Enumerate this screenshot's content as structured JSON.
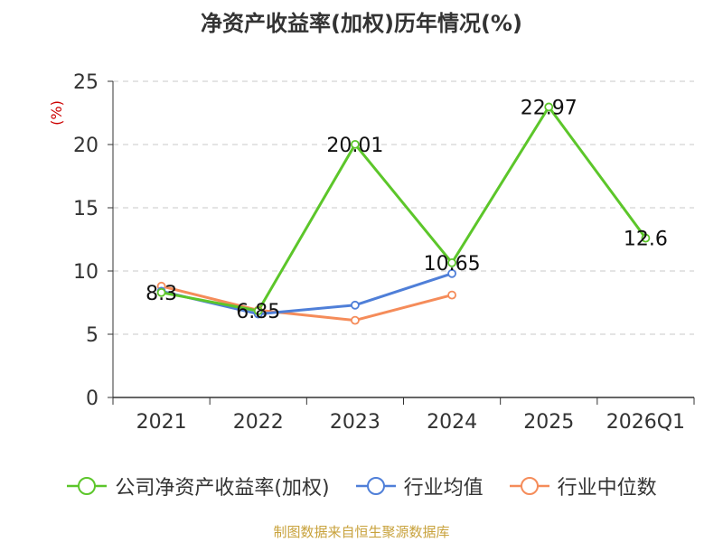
{
  "title": "净资产收益率(加权)历年情况(%)",
  "source_note": "制图数据来自恒生聚源数据库",
  "chart_data": {
    "type": "line",
    "title": "净资产收益率(加权)历年情况(%)",
    "ylabel": "(%)",
    "categories": [
      "2021",
      "2022",
      "2023",
      "2024",
      "2025",
      "2026Q1"
    ],
    "ylim": [
      0,
      25
    ],
    "yticks": [
      0,
      5,
      10,
      15,
      20,
      25
    ],
    "grid": true,
    "legend_position": "bottom",
    "series": [
      {
        "name": "公司净资产收益率(加权)",
        "color": "#5cc62a",
        "values": [
          8.3,
          6.85,
          20.01,
          10.65,
          22.97,
          12.6
        ],
        "labels": [
          "8.3",
          "6.85",
          "20.01",
          "10.65",
          "22.97",
          "12.6"
        ]
      },
      {
        "name": "行业均值",
        "color": "#4f7fd8",
        "values": [
          8.4,
          6.6,
          7.3,
          9.8,
          null,
          null
        ]
      },
      {
        "name": "行业中位数",
        "color": "#f58c5a",
        "values": [
          8.8,
          6.9,
          6.1,
          8.1,
          null,
          null
        ]
      }
    ]
  }
}
